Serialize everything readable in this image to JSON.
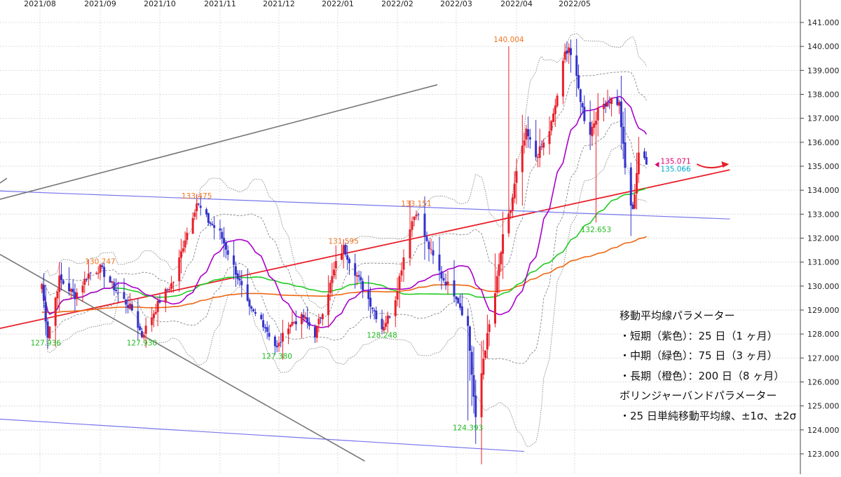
{
  "chart_data": {
    "type": "candlestick",
    "x_ticks": [
      "2021/08",
      "2021/09",
      "2021/10",
      "2021/11",
      "2021/12",
      "2022/01",
      "2022/02",
      "2022/03",
      "2022/04",
      "2022/05"
    ],
    "ylim": [
      122.7,
      141.3
    ],
    "y_ticks": [
      "123.000",
      "124.000",
      "125.000",
      "126.000",
      "127.000",
      "128.000",
      "129.000",
      "130.000",
      "131.000",
      "132.000",
      "133.000",
      "134.000",
      "135.000",
      "136.000",
      "137.000",
      "138.000",
      "139.000",
      "140.000",
      "141.000"
    ],
    "grid": true,
    "peak_labels": [
      {
        "text": "140.004",
        "date": "2022/03/28",
        "value": 140.004,
        "color": "#ee7722"
      },
      {
        "text": "133.151",
        "date": "2022/02/10",
        "value": 133.151,
        "color": "#ee7722"
      },
      {
        "text": "131.595",
        "date": "2022/01/04",
        "value": 131.595,
        "color": "#ee7722"
      },
      {
        "text": "133.475",
        "date": "2021/10/20",
        "value": 133.475,
        "color": "#ee7722"
      },
      {
        "text": "130.747",
        "date": "2021/09/01",
        "value": 130.747,
        "color": "#ee7722"
      }
    ],
    "trough_labels": [
      {
        "text": "127.936",
        "date": "2021/08/04",
        "value": 127.936,
        "color": "#22bb22"
      },
      {
        "text": "127.930",
        "date": "2021/09/22",
        "value": 127.93,
        "color": "#22bb22"
      },
      {
        "text": "127.380",
        "date": "2021/11/30",
        "value": 127.38,
        "color": "#22bb22"
      },
      {
        "text": "128.248",
        "date": "2022/01/24",
        "value": 128.248,
        "color": "#22bb22"
      },
      {
        "text": "124.393",
        "date": "2022/03/07",
        "value": 124.393,
        "color": "#22bb22"
      },
      {
        "text": "132.653",
        "date": "2022/05/12",
        "value": 132.653,
        "color": "#22bb22"
      }
    ],
    "current_labels": [
      {
        "text": "135.071",
        "value": 135.071,
        "color": "#e0006e"
      },
      {
        "text": "135.066",
        "value": 135.066,
        "color": "#00aacc"
      }
    ],
    "colors": {
      "up_candle": "#e8202a",
      "down_candle": "#3333cc",
      "ma_short": "#aa00cc",
      "ma_mid": "#22cc22",
      "ma_long": "#ee6611",
      "bollinger": "#888888",
      "trend_red": "#e8202a",
      "trend_blue": "#7777ee",
      "trend_gray": "#777777"
    }
  },
  "legend": {
    "title": "移動平均線パラメーター",
    "items": [
      "・短期（紫色）：25 日（1 ヶ月）",
      "・中期（緑色）：75 日（3 ヶ月）",
      "・長期（橙色）：200 日（8 ヶ月）"
    ],
    "bb_title": "ボリンジャーバンドパラメーター",
    "bb_items": [
      "・25 日単純移動平均線、±1σ、±2σ"
    ]
  }
}
